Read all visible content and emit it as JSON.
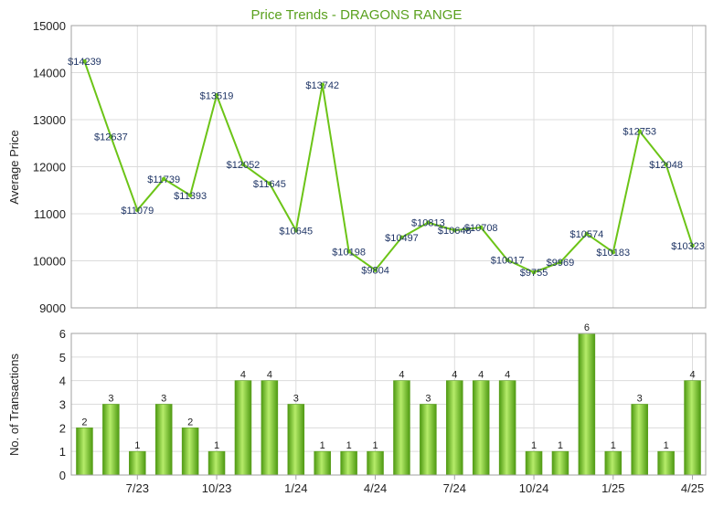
{
  "chart_data": [
    {
      "type": "line",
      "title": "Price Trends - DRAGONS RANGE",
      "ylabel": "Average Price",
      "ylim": [
        9000,
        15000
      ],
      "yticks": [
        9000,
        10000,
        11000,
        12000,
        13000,
        14000,
        15000
      ],
      "grid": true,
      "line_color": "#6cc417",
      "point_labels": [
        "$14239",
        "$12637",
        "$11079",
        "$11739",
        "$11393",
        "$13519",
        "$12052",
        "$11645",
        "$10645",
        "$13742",
        "$10198",
        "$9804",
        "$10497",
        "$10813",
        "$10648",
        "$10708",
        "$10017",
        "$9755",
        "$9969",
        "$10574",
        "$10183",
        "$12753",
        "$12048",
        "$10323"
      ],
      "series": [
        {
          "values": [
            14239,
            12637,
            11079,
            11739,
            11393,
            13519,
            12052,
            11645,
            10645,
            13742,
            10198,
            9804,
            10497,
            10813,
            10648,
            10708,
            10017,
            9755,
            9969,
            10574,
            10183,
            12753,
            12048,
            10323
          ]
        }
      ]
    },
    {
      "type": "bar",
      "ylabel": "No. of Transactions",
      "ylim": [
        0,
        6
      ],
      "yticks": [
        0,
        1,
        2,
        3,
        4,
        5,
        6
      ],
      "x_tick_labels": [
        "7/23",
        "10/23",
        "1/24",
        "4/24",
        "7/24",
        "10/24",
        "1/25",
        "4/25"
      ],
      "grid": true,
      "bar_color": "#7cc62a",
      "values": [
        2,
        3,
        1,
        3,
        2,
        1,
        4,
        4,
        3,
        1,
        1,
        1,
        4,
        3,
        4,
        4,
        4,
        1,
        1,
        6,
        1,
        3,
        1,
        4
      ]
    }
  ]
}
